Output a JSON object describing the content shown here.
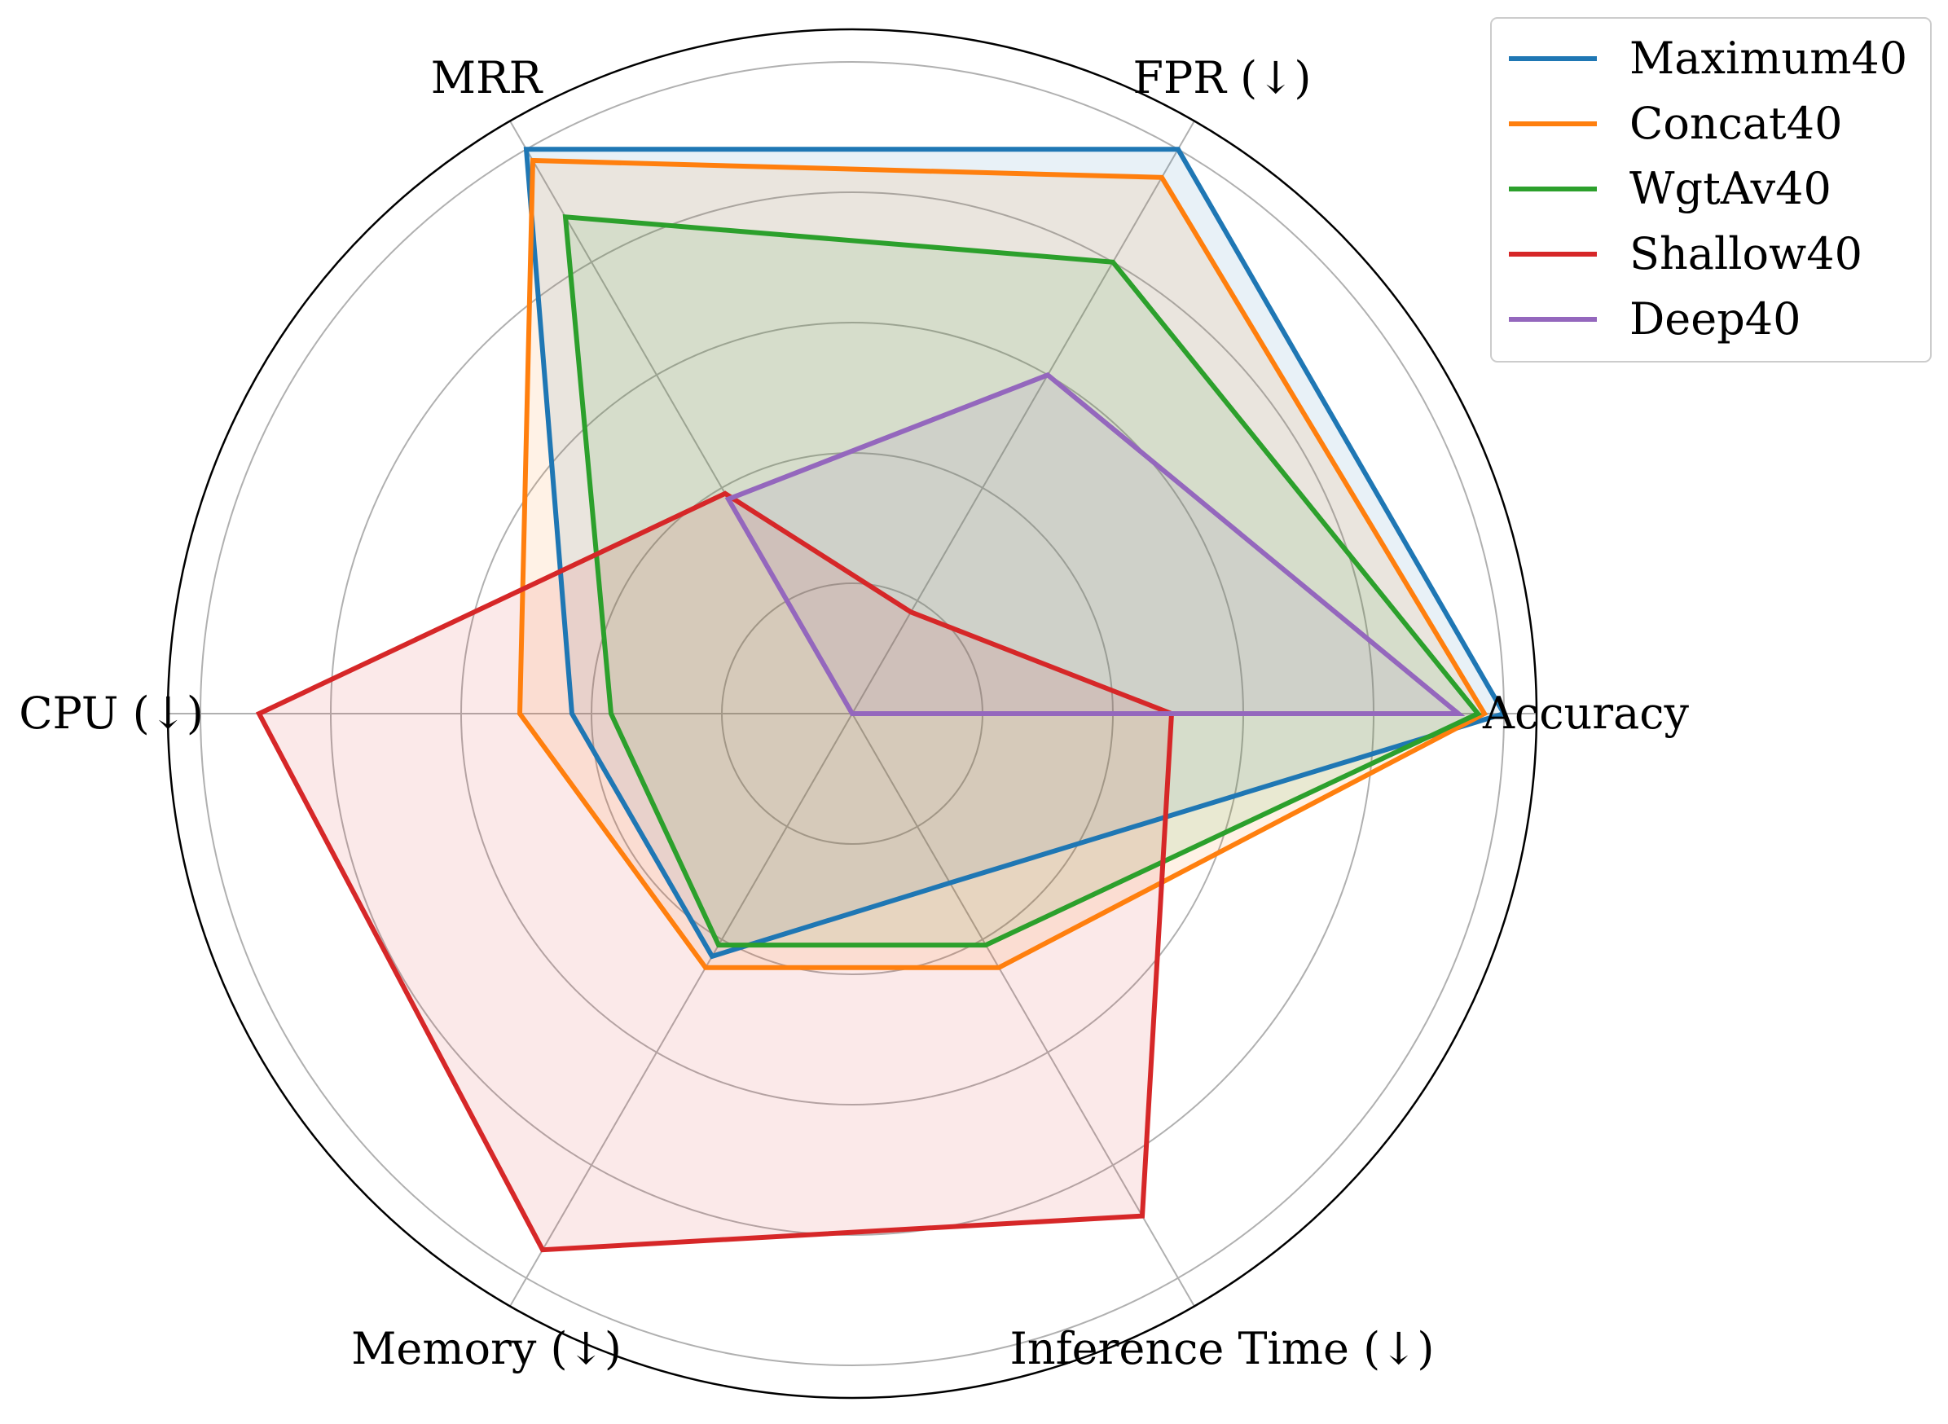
{
  "chart_data": {
    "type": "radar",
    "axes": [
      "Accuracy",
      "FPR (↓)",
      "MRR",
      "CPU (↓)",
      "Memory (↓)",
      "Inference Time (↓)"
    ],
    "rlim": [
      0,
      1.05
    ],
    "rings": [
      0.2,
      0.4,
      0.6,
      0.8,
      1.0
    ],
    "grid": true,
    "legend_position": "top-right",
    "series": [
      {
        "name": "Maximum40",
        "color": "#1f77b4",
        "values": [
          1.0,
          1.0,
          1.0,
          0.43,
          0.43,
          0.3
        ]
      },
      {
        "name": "Concat40",
        "color": "#ff7f0e",
        "values": [
          0.97,
          0.95,
          0.98,
          0.51,
          0.45,
          0.45
        ]
      },
      {
        "name": "WgtAv40",
        "color": "#2ca02c",
        "values": [
          0.96,
          0.8,
          0.88,
          0.37,
          0.41,
          0.41
        ]
      },
      {
        "name": "Shallow40",
        "color": "#d62728",
        "values": [
          0.49,
          0.18,
          0.39,
          0.91,
          0.95,
          0.89
        ]
      },
      {
        "name": "Deep40",
        "color": "#9467bd",
        "values": [
          0.93,
          0.6,
          0.38,
          0.0,
          0.0,
          0.0
        ]
      }
    ]
  }
}
